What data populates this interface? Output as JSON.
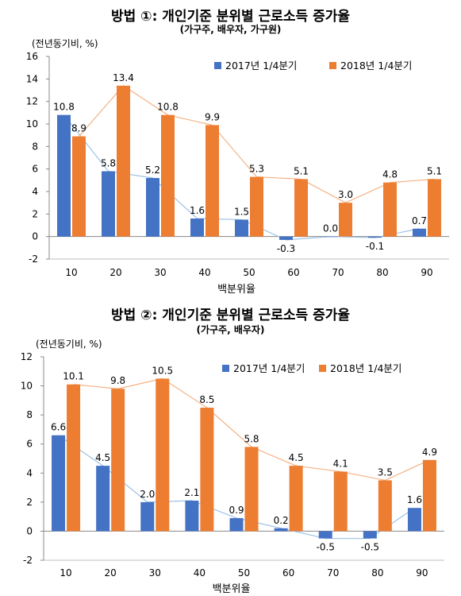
{
  "colors": {
    "series_2017": "#4472C4",
    "series_2017_line": "#9DC3E6",
    "series_2018": "#ED7D31",
    "series_2018_line": "#F4B183",
    "axis": "#888888"
  },
  "chart_data": [
    {
      "type": "bar",
      "title": "방법 ①: 개인기준 분위별 근로소득 증가율",
      "subtitle": "(가구주, 배우자, 가구원)",
      "ylabel": "(전년동기비, %)",
      "xlabel": "백분위율",
      "categories": [
        "10",
        "20",
        "30",
        "40",
        "50",
        "60",
        "70",
        "80",
        "90"
      ],
      "ylim": [
        -2,
        16
      ],
      "yticks": [
        "-2",
        "0",
        "2",
        "4",
        "6",
        "8",
        "10",
        "12",
        "14",
        "16"
      ],
      "legend": "top-right",
      "series": [
        {
          "name": "2017년 1/4분기",
          "values": [
            10.8,
            5.8,
            5.2,
            1.6,
            1.5,
            -0.3,
            0.0,
            -0.1,
            0.7
          ],
          "labels": [
            "10.8",
            "5.8",
            "5.2",
            "1.6",
            "1.5",
            "-0.3",
            "0.0",
            "-0.1",
            "0.7"
          ]
        },
        {
          "name": "2018년 1/4분기",
          "values": [
            8.9,
            13.4,
            10.8,
            9.9,
            5.3,
            5.1,
            3.0,
            4.8,
            5.1
          ],
          "labels": [
            "8.9",
            "13.4",
            "10.8",
            "9.9",
            "5.3",
            "5.1",
            "3.0",
            "4.8",
            "5.1"
          ]
        }
      ]
    },
    {
      "type": "bar",
      "title": "방법 ②: 개인기준 분위별 근로소득 증가율",
      "subtitle": "(가구주, 배우자)",
      "ylabel": "(전년동기비, %)",
      "xlabel": "백분위율",
      "categories": [
        "10",
        "20",
        "30",
        "40",
        "50",
        "60",
        "70",
        "80",
        "90"
      ],
      "ylim": [
        -2,
        12
      ],
      "yticks": [
        "-2",
        "0",
        "2",
        "4",
        "6",
        "8",
        "10",
        "12"
      ],
      "legend": "top-right",
      "series": [
        {
          "name": "2017년 1/4분기",
          "values": [
            6.6,
            4.5,
            2.0,
            2.1,
            0.9,
            0.2,
            -0.5,
            -0.5,
            1.6
          ],
          "labels": [
            "6.6",
            "4.5",
            "2.0",
            "2.1",
            "0.9",
            "0.2",
            "-0.5",
            "-0.5",
            "1.6"
          ]
        },
        {
          "name": "2018년 1/4분기",
          "values": [
            10.1,
            9.8,
            10.5,
            8.5,
            5.8,
            4.5,
            4.1,
            3.5,
            4.9
          ],
          "labels": [
            "10.1",
            "9.8",
            "10.5",
            "8.5",
            "5.8",
            "4.5",
            "4.1",
            "3.5",
            "4.9"
          ]
        }
      ]
    }
  ]
}
